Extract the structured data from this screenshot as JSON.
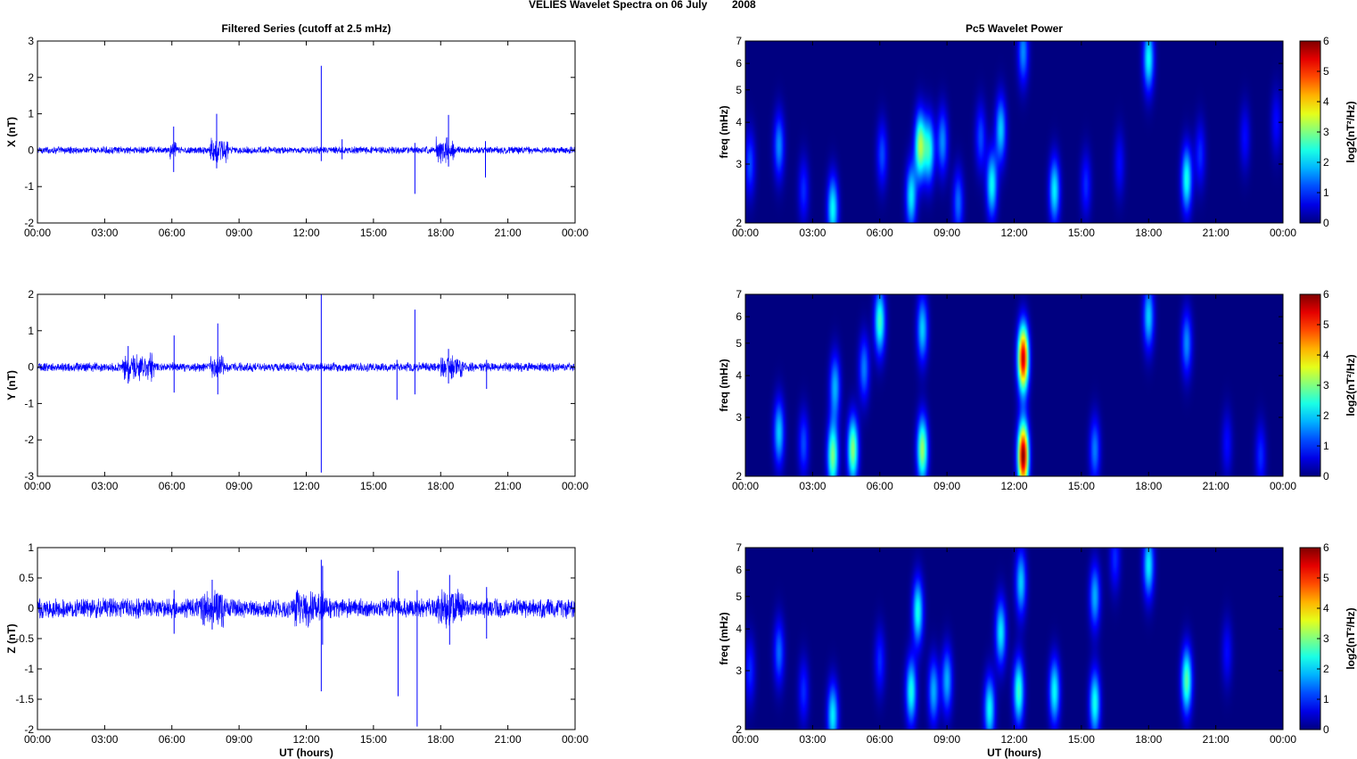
{
  "figure": {
    "suptitle_left": "VELIES Wavelet Spectra on 06 July",
    "suptitle_right": "2008"
  },
  "chart_data": [
    {
      "type": "line",
      "panel": "X",
      "title": "Filtered Series (cutoff at 2.5 mHz)",
      "xlabel": "",
      "ylabel": "X (nT)",
      "xlim": [
        0,
        24
      ],
      "x_unit": "UT hours",
      "x_ticks": [
        "00:00",
        "03:00",
        "06:00",
        "09:00",
        "12:00",
        "15:00",
        "18:00",
        "21:00",
        "00:00"
      ],
      "ylim": [
        -2,
        3
      ],
      "y_ticks": [
        "-2",
        "-1",
        "0",
        "1",
        "2",
        "3"
      ],
      "line_color": "#0000ff",
      "noise_amplitude": 0.08,
      "noise_bursts": [
        {
          "t_range": [
            7.7,
            8.5
          ],
          "amp": 0.28
        },
        {
          "t_range": [
            17.8,
            18.6
          ],
          "amp": 0.3
        },
        {
          "t_range": [
            5.9,
            6.2
          ],
          "amp": 0.2
        }
      ],
      "spikes": [
        {
          "t": 6.08,
          "min": -0.6,
          "max": 0.65
        },
        {
          "t": 8.0,
          "min": -0.5,
          "max": 1.0
        },
        {
          "t": 12.67,
          "min": -0.3,
          "max": 2.32
        },
        {
          "t": 13.6,
          "min": -0.25,
          "max": 0.3
        },
        {
          "t": 16.85,
          "min": -1.2,
          "max": 0.2
        },
        {
          "t": 18.35,
          "min": -0.45,
          "max": 0.97
        },
        {
          "t": 20.0,
          "min": -0.75,
          "max": 0.25
        }
      ]
    },
    {
      "type": "line",
      "panel": "Y",
      "title": "",
      "xlabel": "",
      "ylabel": "Y (nT)",
      "xlim": [
        0,
        24
      ],
      "x_unit": "UT hours",
      "x_ticks": [
        "00:00",
        "03:00",
        "06:00",
        "09:00",
        "12:00",
        "15:00",
        "18:00",
        "21:00",
        "00:00"
      ],
      "ylim": [
        -3,
        2
      ],
      "y_ticks": [
        "-3",
        "-2",
        "-1",
        "0",
        "1",
        "2"
      ],
      "line_color": "#0000ff",
      "noise_amplitude": 0.1,
      "noise_bursts": [
        {
          "t_range": [
            3.8,
            5.2
          ],
          "amp": 0.3
        },
        {
          "t_range": [
            7.7,
            8.3
          ],
          "amp": 0.25
        },
        {
          "t_range": [
            18.0,
            19.0
          ],
          "amp": 0.25
        }
      ],
      "spikes": [
        {
          "t": 4.05,
          "min": -0.45,
          "max": 0.58
        },
        {
          "t": 6.1,
          "min": -0.7,
          "max": 0.87
        },
        {
          "t": 8.05,
          "min": -0.75,
          "max": 1.2
        },
        {
          "t": 12.67,
          "min": -2.9,
          "max": 2.0
        },
        {
          "t": 16.05,
          "min": -0.9,
          "max": 0.2
        },
        {
          "t": 16.85,
          "min": -0.75,
          "max": 1.58
        },
        {
          "t": 18.35,
          "min": -0.45,
          "max": 0.5
        },
        {
          "t": 20.05,
          "min": -0.6,
          "max": 0.2
        }
      ]
    },
    {
      "type": "line",
      "panel": "Z",
      "title": "",
      "xlabel": "UT (hours)",
      "ylabel": "Z (nT)",
      "xlim": [
        0,
        24
      ],
      "x_unit": "UT hours",
      "x_ticks": [
        "00:00",
        "03:00",
        "06:00",
        "09:00",
        "12:00",
        "15:00",
        "18:00",
        "21:00",
        "00:00"
      ],
      "ylim": [
        -2,
        1
      ],
      "y_ticks": [
        "-2",
        "-1.5",
        "-1",
        "-0.5",
        "0",
        "0.5",
        "1"
      ],
      "line_color": "#0000ff",
      "noise_amplitude": 0.13,
      "noise_bursts": [
        {
          "t_range": [
            7.3,
            8.3
          ],
          "amp": 0.25
        },
        {
          "t_range": [
            11.5,
            12.8
          ],
          "amp": 0.25
        },
        {
          "t_range": [
            17.8,
            19.0
          ],
          "amp": 0.25
        }
      ],
      "spikes": [
        {
          "t": 6.1,
          "min": -0.42,
          "max": 0.3
        },
        {
          "t": 7.8,
          "min": -0.35,
          "max": 0.47
        },
        {
          "t": 12.67,
          "min": -1.37,
          "max": 0.8
        },
        {
          "t": 12.73,
          "min": -0.6,
          "max": 0.7
        },
        {
          "t": 16.1,
          "min": -1.45,
          "max": 0.62
        },
        {
          "t": 16.95,
          "min": -1.95,
          "max": 0.3
        },
        {
          "t": 18.4,
          "min": -0.6,
          "max": 0.55
        },
        {
          "t": 20.05,
          "min": -0.5,
          "max": 0.35
        }
      ]
    },
    {
      "type": "heatmap",
      "panel": "X",
      "title": "Pc5 Wavelet Power",
      "xlabel": "",
      "ylabel": "freq (mHz)",
      "xlim": [
        0,
        24
      ],
      "x_unit": "UT hours",
      "x_ticks": [
        "00:00",
        "03:00",
        "06:00",
        "09:00",
        "12:00",
        "15:00",
        "18:00",
        "21:00",
        "00:00"
      ],
      "y_scale": "log",
      "ylim": [
        2,
        7
      ],
      "y_ticks": [
        "2",
        "3",
        "4",
        "5",
        "6",
        "7"
      ],
      "colorbar_label": "log2(nT²/Hz)",
      "clim": [
        0,
        6
      ],
      "colorbar_ticks": [
        "0",
        "1",
        "2",
        "3",
        "4",
        "5",
        "6"
      ],
      "colormap": "jet",
      "blobs": [
        {
          "t": 0.2,
          "f": 3.0,
          "p": 1.2
        },
        {
          "t": 1.5,
          "f": 3.4,
          "p": 1.6
        },
        {
          "t": 2.6,
          "f": 2.5,
          "p": 1.0
        },
        {
          "t": 3.9,
          "f": 2.2,
          "p": 2.3
        },
        {
          "t": 6.1,
          "f": 3.2,
          "p": 1.2
        },
        {
          "t": 7.4,
          "f": 2.4,
          "p": 2.2
        },
        {
          "t": 7.8,
          "f": 3.4,
          "p": 3.2
        },
        {
          "t": 8.2,
          "f": 3.3,
          "p": 2.4
        },
        {
          "t": 8.8,
          "f": 3.5,
          "p": 1.6
        },
        {
          "t": 9.5,
          "f": 2.3,
          "p": 1.4
        },
        {
          "t": 10.5,
          "f": 3.6,
          "p": 1.2
        },
        {
          "t": 11.0,
          "f": 2.6,
          "p": 2.3
        },
        {
          "t": 11.4,
          "f": 3.8,
          "p": 2.0
        },
        {
          "t": 12.4,
          "f": 6.5,
          "p": 1.6
        },
        {
          "t": 13.8,
          "f": 2.5,
          "p": 2.2
        },
        {
          "t": 15.2,
          "f": 2.6,
          "p": 1.0
        },
        {
          "t": 16.7,
          "f": 3.0,
          "p": 0.8
        },
        {
          "t": 18.0,
          "f": 6.2,
          "p": 2.3
        },
        {
          "t": 19.7,
          "f": 2.7,
          "p": 2.4
        },
        {
          "t": 20.3,
          "f": 3.2,
          "p": 1.0
        },
        {
          "t": 22.3,
          "f": 3.6,
          "p": 0.8
        },
        {
          "t": 23.7,
          "f": 4.0,
          "p": 0.8
        }
      ]
    },
    {
      "type": "heatmap",
      "panel": "Y",
      "title": "",
      "xlabel": "",
      "ylabel": "freq (mHz)",
      "xlim": [
        0,
        24
      ],
      "x_unit": "UT hours",
      "x_ticks": [
        "00:00",
        "03:00",
        "06:00",
        "09:00",
        "12:00",
        "15:00",
        "18:00",
        "21:00",
        "00:00"
      ],
      "y_scale": "log",
      "ylim": [
        2,
        7
      ],
      "y_ticks": [
        "2",
        "3",
        "4",
        "5",
        "6",
        "7"
      ],
      "colorbar_label": "log2(nT²/Hz)",
      "clim": [
        0,
        6
      ],
      "colorbar_ticks": [
        "0",
        "1",
        "2",
        "3",
        "4",
        "5",
        "6"
      ],
      "colormap": "jet",
      "blobs": [
        {
          "t": 1.5,
          "f": 2.7,
          "p": 2.0
        },
        {
          "t": 2.6,
          "f": 2.5,
          "p": 1.2
        },
        {
          "t": 3.9,
          "f": 2.3,
          "p": 3.0
        },
        {
          "t": 4.0,
          "f": 3.7,
          "p": 1.8
        },
        {
          "t": 4.8,
          "f": 2.4,
          "p": 3.1
        },
        {
          "t": 5.3,
          "f": 4.2,
          "p": 1.5
        },
        {
          "t": 6.0,
          "f": 5.8,
          "p": 2.6
        },
        {
          "t": 7.9,
          "f": 2.4,
          "p": 3.2
        },
        {
          "t": 7.9,
          "f": 5.5,
          "p": 2.0
        },
        {
          "t": 12.4,
          "f": 2.3,
          "p": 6.0
        },
        {
          "t": 12.4,
          "f": 4.5,
          "p": 5.6
        },
        {
          "t": 15.6,
          "f": 2.4,
          "p": 1.5
        },
        {
          "t": 18.0,
          "f": 6.0,
          "p": 2.0
        },
        {
          "t": 19.7,
          "f": 5.0,
          "p": 1.6
        },
        {
          "t": 21.5,
          "f": 2.5,
          "p": 0.8
        },
        {
          "t": 23.0,
          "f": 2.3,
          "p": 1.0
        }
      ]
    },
    {
      "type": "heatmap",
      "panel": "Z",
      "title": "",
      "xlabel": "UT (hours)",
      "ylabel": "freq (mHz)",
      "xlim": [
        0,
        24
      ],
      "x_unit": "UT hours",
      "x_ticks": [
        "00:00",
        "03:00",
        "06:00",
        "09:00",
        "12:00",
        "15:00",
        "18:00",
        "21:00",
        "00:00"
      ],
      "y_scale": "log",
      "ylim": [
        2,
        7
      ],
      "y_ticks": [
        "2",
        "3",
        "4",
        "5",
        "6",
        "7"
      ],
      "colorbar_label": "log2(nT²/Hz)",
      "clim": [
        0,
        6
      ],
      "colorbar_ticks": [
        "0",
        "1",
        "2",
        "3",
        "4",
        "5",
        "6"
      ],
      "colormap": "jet",
      "blobs": [
        {
          "t": 0.2,
          "f": 3.0,
          "p": 1.0
        },
        {
          "t": 1.5,
          "f": 3.4,
          "p": 1.4
        },
        {
          "t": 2.6,
          "f": 2.6,
          "p": 1.0
        },
        {
          "t": 3.9,
          "f": 2.2,
          "p": 2.2
        },
        {
          "t": 6.0,
          "f": 3.2,
          "p": 1.0
        },
        {
          "t": 7.4,
          "f": 2.6,
          "p": 2.4
        },
        {
          "t": 7.7,
          "f": 4.5,
          "p": 2.4
        },
        {
          "t": 8.4,
          "f": 2.6,
          "p": 1.8
        },
        {
          "t": 9.0,
          "f": 2.8,
          "p": 1.8
        },
        {
          "t": 10.9,
          "f": 2.3,
          "p": 2.3
        },
        {
          "t": 11.4,
          "f": 3.9,
          "p": 2.2
        },
        {
          "t": 12.2,
          "f": 2.6,
          "p": 2.6
        },
        {
          "t": 12.3,
          "f": 5.5,
          "p": 2.0
        },
        {
          "t": 13.8,
          "f": 2.6,
          "p": 2.3
        },
        {
          "t": 15.6,
          "f": 2.4,
          "p": 2.4
        },
        {
          "t": 15.6,
          "f": 5.0,
          "p": 1.8
        },
        {
          "t": 16.5,
          "f": 6.5,
          "p": 1.0
        },
        {
          "t": 18.0,
          "f": 6.2,
          "p": 2.2
        },
        {
          "t": 19.7,
          "f": 2.8,
          "p": 2.8
        },
        {
          "t": 21.5,
          "f": 3.4,
          "p": 0.8
        }
      ]
    }
  ]
}
